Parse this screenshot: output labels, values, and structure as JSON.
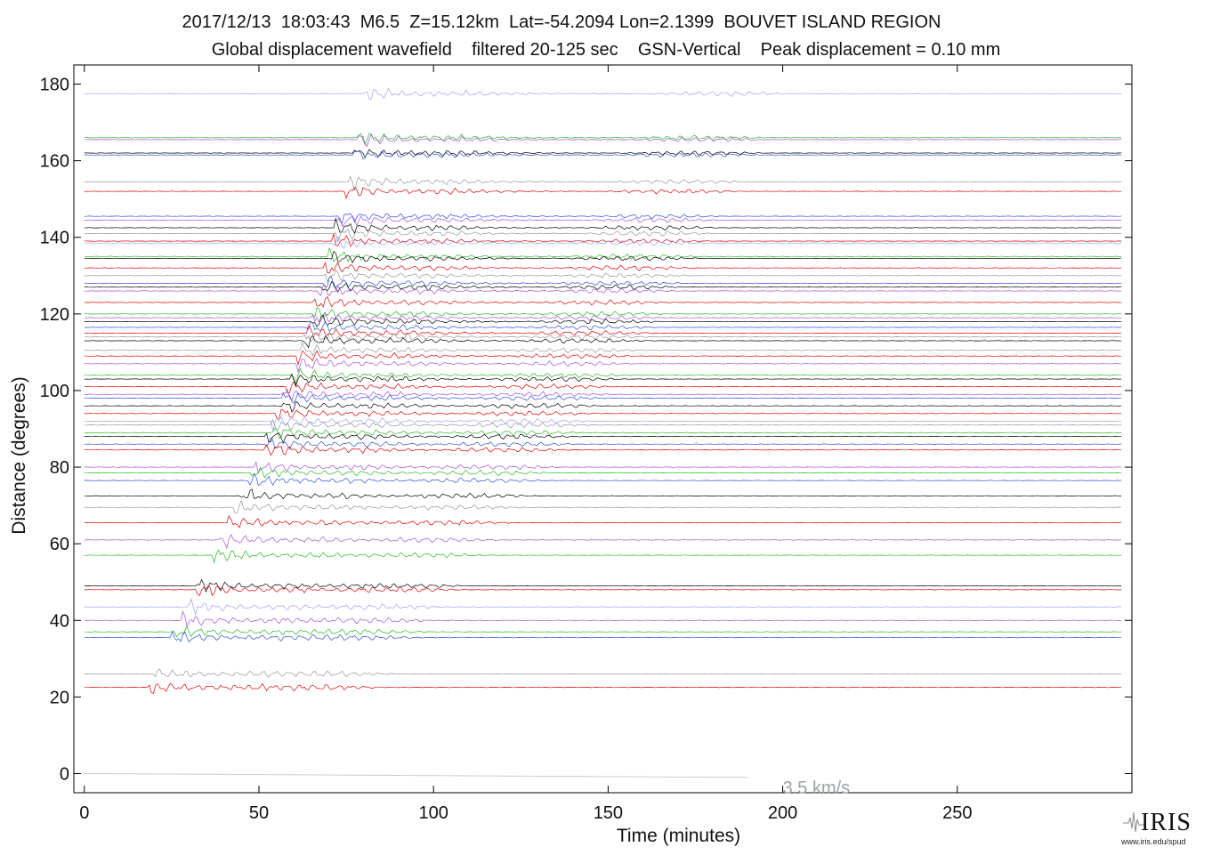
{
  "title": {
    "line1": "2017/12/13  18:03:43  M6.5  Z=15.12km  Lat=-54.2094 Lon=2.1399  BOUVET ISLAND REGION",
    "line2": "Global displacement wavefield    filtered 20-125 sec    GSN-Vertical    Peak displacement = 0.10 mm"
  },
  "logo": {
    "text": "IRIS",
    "url": "www.iris.edu/spud"
  },
  "chart_data": {
    "type": "line",
    "xlabel": "Time (minutes)",
    "ylabel": "Distance (degrees)",
    "xlim": [
      -3,
      300
    ],
    "ylim": [
      -5,
      185
    ],
    "xticks": [
      0,
      50,
      100,
      150,
      200,
      250
    ],
    "yticks": [
      0,
      20,
      40,
      60,
      80,
      100,
      120,
      140,
      160,
      180
    ],
    "grid": false,
    "annotation": {
      "text": "3.5 km/s",
      "color": "#9aa3a6",
      "x": 200,
      "y": -2
    },
    "velocity_line": {
      "speed_km_s": 3.5,
      "from": [
        0,
        0
      ],
      "to": [
        190,
        -1
      ]
    },
    "trace_colors": [
      "#000000",
      "#e00000",
      "#2a4fd8",
      "#22bb22",
      "#a64ddb",
      "#8f979b",
      "#9aa0f0"
    ],
    "stations": [
      {
        "distance": 177.5,
        "color": "#9aa0f0",
        "onset": 80
      },
      {
        "distance": 166,
        "color": "#22bb22",
        "onset": 78
      },
      {
        "distance": 165.5,
        "color": "#a64ddb",
        "onset": 78
      },
      {
        "distance": 162,
        "color": "#000000",
        "onset": 77
      },
      {
        "distance": 161.5,
        "color": "#2a4fd8",
        "onset": 77
      },
      {
        "distance": 154.5,
        "color": "#8f979b",
        "onset": 76
      },
      {
        "distance": 152,
        "color": "#e00000",
        "onset": 75
      },
      {
        "distance": 145.5,
        "color": "#2a4fd8",
        "onset": 73
      },
      {
        "distance": 144.5,
        "color": "#a64ddb",
        "onset": 73
      },
      {
        "distance": 142.5,
        "color": "#000000",
        "onset": 72
      },
      {
        "distance": 141,
        "color": "#8f979b",
        "onset": 72
      },
      {
        "distance": 139,
        "color": "#e00000",
        "onset": 71
      },
      {
        "distance": 138.5,
        "color": "#9aa0f0",
        "onset": 71
      },
      {
        "distance": 135,
        "color": "#22bb22",
        "onset": 70
      },
      {
        "distance": 134.5,
        "color": "#000000",
        "onset": 70
      },
      {
        "distance": 132,
        "color": "#e00000",
        "onset": 69
      },
      {
        "distance": 130,
        "color": "#8f979b",
        "onset": 69
      },
      {
        "distance": 128,
        "color": "#2a4fd8",
        "onset": 68
      },
      {
        "distance": 127,
        "color": "#000000",
        "onset": 68
      },
      {
        "distance": 126,
        "color": "#a64ddb",
        "onset": 67
      },
      {
        "distance": 123,
        "color": "#e00000",
        "onset": 66
      },
      {
        "distance": 120,
        "color": "#22bb22",
        "onset": 66
      },
      {
        "distance": 119,
        "color": "#a64ddb",
        "onset": 65
      },
      {
        "distance": 118,
        "color": "#000000",
        "onset": 65
      },
      {
        "distance": 116.5,
        "color": "#2a4fd8",
        "onset": 64
      },
      {
        "distance": 115,
        "color": "#e00000",
        "onset": 64
      },
      {
        "distance": 114,
        "color": "#8f979b",
        "onset": 63
      },
      {
        "distance": 113,
        "color": "#000000",
        "onset": 63
      },
      {
        "distance": 110.5,
        "color": "#8f979b",
        "onset": 62
      },
      {
        "distance": 109,
        "color": "#e00000",
        "onset": 61
      },
      {
        "distance": 107,
        "color": "#a64ddb",
        "onset": 61
      },
      {
        "distance": 104,
        "color": "#22bb22",
        "onset": 60
      },
      {
        "distance": 103,
        "color": "#000000",
        "onset": 59
      },
      {
        "distance": 101,
        "color": "#e00000",
        "onset": 58
      },
      {
        "distance": 99,
        "color": "#a64ddb",
        "onset": 57
      },
      {
        "distance": 98,
        "color": "#2a4fd8",
        "onset": 57
      },
      {
        "distance": 96,
        "color": "#000000",
        "onset": 56
      },
      {
        "distance": 94,
        "color": "#e00000",
        "onset": 55
      },
      {
        "distance": 92,
        "color": "#9aa0f0",
        "onset": 54
      },
      {
        "distance": 91,
        "color": "#8f979b",
        "onset": 54
      },
      {
        "distance": 89,
        "color": "#22bb22",
        "onset": 53
      },
      {
        "distance": 88,
        "color": "#000000",
        "onset": 52
      },
      {
        "distance": 86,
        "color": "#2a4fd8",
        "onset": 52
      },
      {
        "distance": 84.5,
        "color": "#e00000",
        "onset": 51
      },
      {
        "distance": 80,
        "color": "#a64ddb",
        "onset": 49
      },
      {
        "distance": 78.5,
        "color": "#22bb22",
        "onset": 48
      },
      {
        "distance": 76.5,
        "color": "#2a4fd8",
        "onset": 47
      },
      {
        "distance": 72.5,
        "color": "#000000",
        "onset": 45
      },
      {
        "distance": 69.5,
        "color": "#8f979b",
        "onset": 43
      },
      {
        "distance": 65.5,
        "color": "#e00000",
        "onset": 41
      },
      {
        "distance": 61,
        "color": "#a64ddb",
        "onset": 39
      },
      {
        "distance": 57,
        "color": "#22bb22",
        "onset": 37
      },
      {
        "distance": 49,
        "color": "#000000",
        "onset": 32
      },
      {
        "distance": 48,
        "color": "#e00000",
        "onset": 32
      },
      {
        "distance": 43.5,
        "color": "#9aa0f0",
        "onset": 30
      },
      {
        "distance": 40,
        "color": "#a64ddb",
        "onset": 28
      },
      {
        "distance": 37,
        "color": "#22bb22",
        "onset": 26
      },
      {
        "distance": 35.5,
        "color": "#2a4fd8",
        "onset": 25
      },
      {
        "distance": 26,
        "color": "#8f979b",
        "onset": 20
      },
      {
        "distance": 22.5,
        "color": "#e00000",
        "onset": 18
      }
    ]
  }
}
